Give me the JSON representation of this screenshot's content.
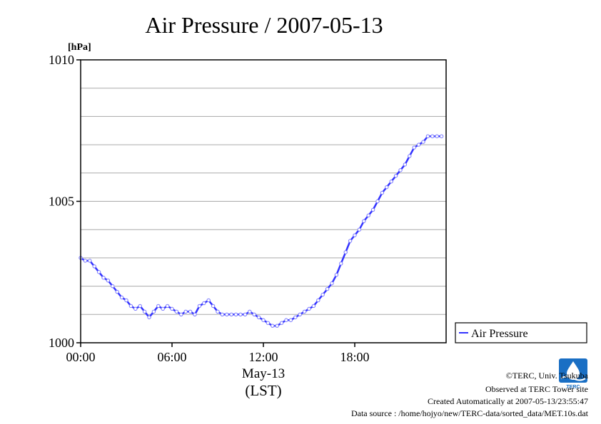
{
  "chart_data": {
    "type": "line",
    "title": "Air Pressure / 2007-05-13",
    "ylabel": "[hPa]",
    "xlabel_lines": [
      "May-13",
      "(LST)"
    ],
    "x_unit": "hour",
    "xlim": [
      0,
      24
    ],
    "ylim": [
      1000,
      1010
    ],
    "y_ticks": [
      1000,
      1005,
      1010
    ],
    "y_tick_labels": [
      "1000",
      "1005",
      "1010"
    ],
    "x_ticks": [
      0,
      6,
      12,
      18
    ],
    "x_tick_labels": [
      "00:00",
      "06:00",
      "12:00",
      "18:00"
    ],
    "grid": "horizontal, every 1 hPa",
    "legend_position": "right",
    "series": [
      {
        "name": "Air Pressure",
        "color": "#3333ff",
        "x": [
          0.0,
          0.3,
          0.6,
          0.9,
          1.2,
          1.5,
          1.8,
          2.1,
          2.4,
          2.7,
          3.0,
          3.3,
          3.6,
          3.9,
          4.2,
          4.5,
          4.8,
          5.1,
          5.4,
          5.7,
          6.0,
          6.3,
          6.6,
          6.9,
          7.2,
          7.5,
          7.8,
          8.1,
          8.4,
          8.7,
          9.0,
          9.3,
          9.6,
          9.9,
          10.2,
          10.5,
          10.8,
          11.1,
          11.4,
          11.7,
          12.0,
          12.3,
          12.6,
          12.9,
          13.2,
          13.5,
          13.8,
          14.1,
          14.4,
          14.7,
          15.0,
          15.3,
          15.6,
          15.9,
          16.2,
          16.5,
          16.8,
          17.1,
          17.4,
          17.7,
          18.0,
          18.3,
          18.6,
          18.9,
          19.2,
          19.5,
          19.8,
          20.1,
          20.4,
          20.7,
          21.0,
          21.3,
          21.6,
          21.9,
          22.2,
          22.5,
          22.8,
          23.1,
          23.4,
          23.7
        ],
        "y": [
          1003.0,
          1002.9,
          1002.9,
          1002.7,
          1002.5,
          1002.3,
          1002.2,
          1002.0,
          1001.8,
          1001.6,
          1001.5,
          1001.3,
          1001.2,
          1001.3,
          1001.1,
          1000.9,
          1001.1,
          1001.3,
          1001.2,
          1001.3,
          1001.2,
          1001.1,
          1001.0,
          1001.1,
          1001.1,
          1001.0,
          1001.3,
          1001.4,
          1001.5,
          1001.3,
          1001.1,
          1001.0,
          1001.0,
          1001.0,
          1001.0,
          1001.0,
          1001.0,
          1001.1,
          1001.0,
          1000.9,
          1000.8,
          1000.7,
          1000.6,
          1000.6,
          1000.7,
          1000.8,
          1000.8,
          1000.9,
          1001.0,
          1001.1,
          1001.2,
          1001.3,
          1001.5,
          1001.7,
          1001.9,
          1002.1,
          1002.4,
          1002.8,
          1003.2,
          1003.6,
          1003.8,
          1004.0,
          1004.3,
          1004.5,
          1004.7,
          1005.0,
          1005.3,
          1005.5,
          1005.7,
          1005.9,
          1006.1,
          1006.3,
          1006.6,
          1006.9,
          1007.0,
          1007.1,
          1007.3,
          1007.3,
          1007.3,
          1007.3
        ]
      }
    ]
  },
  "legend": {
    "label": "Air Pressure"
  },
  "credits": {
    "copyright": "©TERC, Univ. Tsukuba",
    "observed": "Observed at TERC Tower site",
    "created": "Created Automatically at 2007-05-13/23:55:47",
    "source": "Data source : /home/hojyo/new/TERC-data/sorted_data/MET.10s.dat"
  },
  "logo": {
    "text": "TERC"
  }
}
